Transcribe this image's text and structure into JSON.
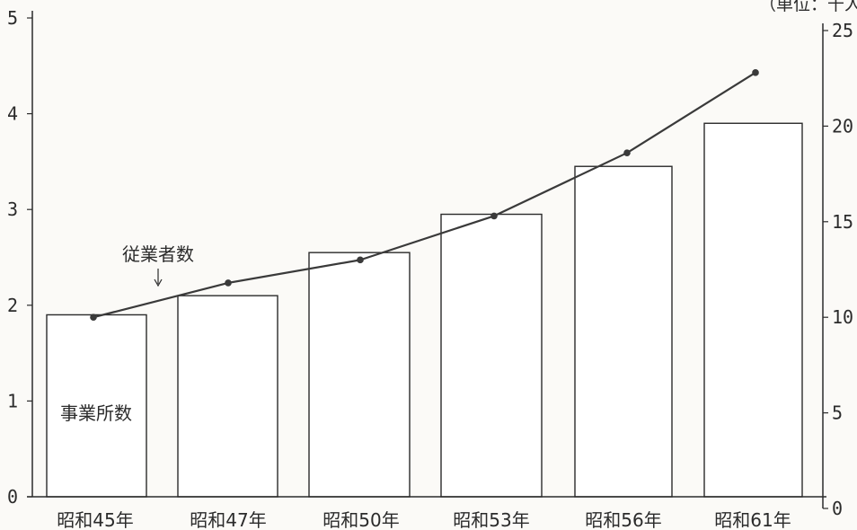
{
  "unit_label": "（単位：千人）",
  "chart_data": {
    "type": "bar",
    "categories": [
      "昭和45年",
      "昭和47年",
      "昭和50年",
      "昭和53年",
      "昭和56年",
      "昭和61年"
    ],
    "series": [
      {
        "name": "事業所数",
        "type": "bar",
        "axis": "left",
        "values": [
          1.9,
          2.1,
          2.55,
          2.95,
          3.45,
          3.9
        ]
      },
      {
        "name": "従業者数",
        "type": "line",
        "axis": "right",
        "values": [
          10.0,
          11.8,
          13.0,
          15.3,
          18.6,
          22.8
        ]
      }
    ],
    "left_axis": {
      "ylim": [
        0,
        5
      ],
      "ticks": [
        "0",
        "1",
        "2",
        "3",
        "4",
        "5"
      ]
    },
    "right_axis": {
      "ylim": [
        0,
        25
      ],
      "ticks": [
        "0",
        "5",
        "10",
        "15",
        "20",
        "25"
      ]
    },
    "grid": false,
    "colors": {
      "line": "#3a3a3a",
      "bar_stroke": "#2b2b2b",
      "bar_fill": "#ffffff",
      "axis": "#2b2b2b"
    }
  }
}
